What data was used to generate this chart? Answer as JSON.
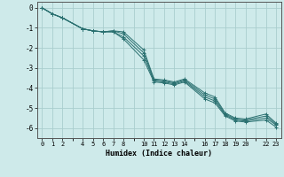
{
  "xlabel": "Humidex (Indice chaleur)",
  "background_color": "#ceeaea",
  "grid_color": "#aacece",
  "line_color": "#2a7070",
  "xlim": [
    -0.5,
    23.5
  ],
  "ylim": [
    -6.5,
    0.3
  ],
  "xticks": [
    0,
    1,
    2,
    4,
    5,
    6,
    7,
    8,
    10,
    11,
    12,
    13,
    14,
    16,
    17,
    18,
    19,
    20,
    22,
    23
  ],
  "yticks": [
    0,
    -1,
    -2,
    -3,
    -4,
    -5,
    -6
  ],
  "series": [
    {
      "x": [
        0,
        1,
        2,
        4,
        5,
        6,
        7,
        8,
        10,
        11,
        12,
        13,
        14,
        16,
        17,
        18,
        19,
        20,
        22,
        23
      ],
      "y": [
        0,
        -0.3,
        -0.5,
        -1.05,
        -1.15,
        -1.2,
        -1.15,
        -1.2,
        -2.1,
        -3.55,
        -3.6,
        -3.7,
        -3.55,
        -4.25,
        -4.45,
        -5.25,
        -5.5,
        -5.55,
        -5.3,
        -5.75
      ]
    },
    {
      "x": [
        0,
        1,
        2,
        4,
        5,
        6,
        7,
        8,
        10,
        11,
        12,
        13,
        14,
        16,
        17,
        18,
        19,
        20,
        22,
        23
      ],
      "y": [
        0,
        -0.3,
        -0.5,
        -1.05,
        -1.15,
        -1.2,
        -1.15,
        -1.3,
        -2.25,
        -3.6,
        -3.65,
        -3.75,
        -3.6,
        -4.35,
        -4.55,
        -5.3,
        -5.55,
        -5.6,
        -5.4,
        -5.8
      ]
    },
    {
      "x": [
        0,
        1,
        2,
        4,
        5,
        6,
        7,
        8,
        10,
        11,
        12,
        13,
        14,
        16,
        17,
        18,
        19,
        20,
        22,
        23
      ],
      "y": [
        0,
        -0.3,
        -0.5,
        -1.05,
        -1.15,
        -1.2,
        -1.2,
        -1.45,
        -2.4,
        -3.65,
        -3.7,
        -3.8,
        -3.65,
        -4.45,
        -4.65,
        -5.35,
        -5.6,
        -5.65,
        -5.5,
        -5.85
      ]
    },
    {
      "x": [
        0,
        1,
        2,
        4,
        5,
        6,
        7,
        8,
        10,
        11,
        12,
        13,
        14,
        16,
        17,
        18,
        19,
        20,
        22,
        23
      ],
      "y": [
        0,
        -0.3,
        -0.5,
        -1.05,
        -1.15,
        -1.2,
        -1.2,
        -1.55,
        -2.6,
        -3.7,
        -3.75,
        -3.85,
        -3.7,
        -4.55,
        -4.75,
        -5.4,
        -5.65,
        -5.7,
        -5.6,
        -5.95
      ]
    }
  ]
}
